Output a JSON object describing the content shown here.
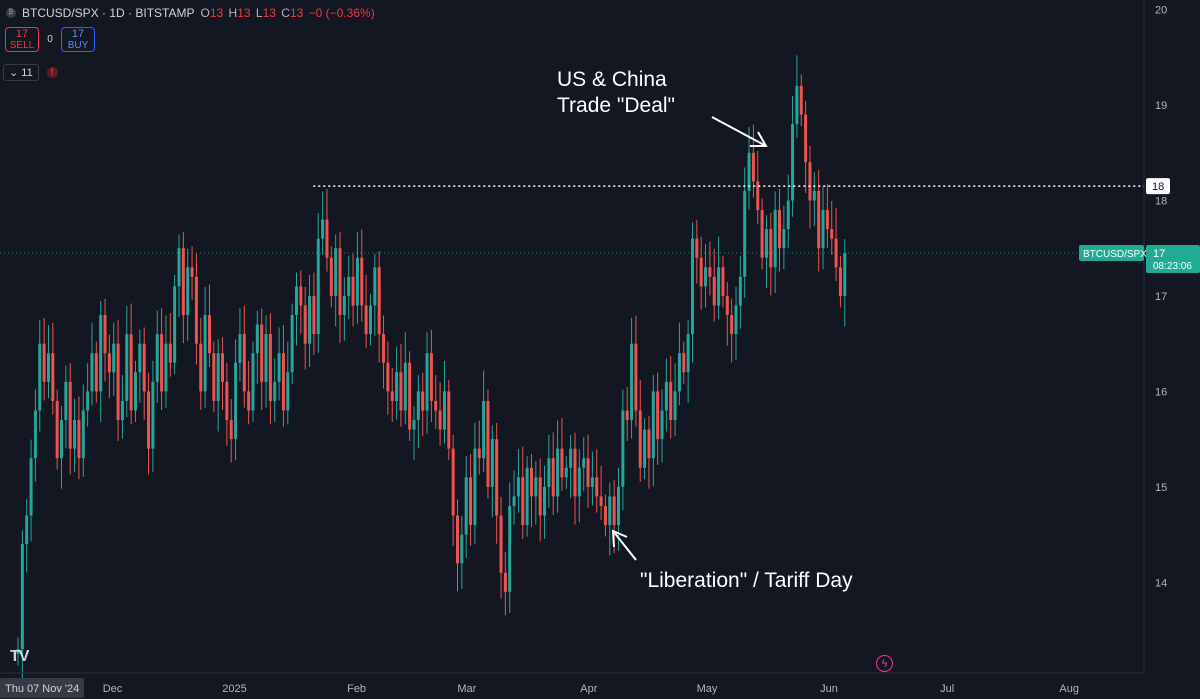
{
  "header": {
    "title": "BTCUSD/SPX · 1D · BITSTAMP",
    "open_label": "O",
    "open": "13",
    "high_label": "H",
    "high": "13",
    "low_label": "L",
    "low": "13",
    "close_label": "C",
    "close": "13",
    "change": "−0 (−0.36%)"
  },
  "trade": {
    "sell_price": "17",
    "sell_label": "SELL",
    "spread": "0",
    "buy_price": "17",
    "buy_label": "BUY"
  },
  "indicators": {
    "count": "11"
  },
  "colors": {
    "background": "#131722",
    "up": "#26a69a",
    "down": "#ef5350",
    "text": "#d1d4dc",
    "price_tag": "#22ab94"
  },
  "icons": {
    "symbol": "circle-icon",
    "collapse": "chevron-down-icon",
    "warning": "alert-icon",
    "logo": "tradingview-logo-icon",
    "flash": "lightning-icon"
  },
  "chart_data": {
    "type": "candlestick",
    "symbol": "BTCUSD/SPX",
    "x_start_date": "2024-11-07",
    "x_end_date": "2025-08-20",
    "ylim": [
      13.05,
      20.1
    ],
    "y_ticks": [
      "14",
      "15",
      "16",
      "17",
      "18",
      "19",
      "20"
    ],
    "x_ticks": [
      {
        "label": "Thu 07 Nov '24",
        "date": "2024-11-07",
        "highlight": true
      },
      {
        "label": "Dec",
        "date": "2024-12-01"
      },
      {
        "label": "2025",
        "date": "2025-01-01"
      },
      {
        "label": "Feb",
        "date": "2025-02-01"
      },
      {
        "label": "Mar",
        "date": "2025-03-01"
      },
      {
        "label": "Apr",
        "date": "2025-04-01"
      },
      {
        "label": "May",
        "date": "2025-05-01"
      },
      {
        "label": "Jun",
        "date": "2025-06-01"
      },
      {
        "label": "Jul",
        "date": "2025-07-01"
      },
      {
        "label": "Aug",
        "date": "2025-08-01"
      }
    ],
    "hline": {
      "value": 18.15,
      "label": "18",
      "start_date": "2025-01-21"
    },
    "last_price": {
      "value": 17.45,
      "symbol_label": "BTCUSD/SPX",
      "price_label": "17",
      "countdown": "08:23:06"
    },
    "close_series": [
      13.3,
      14.4,
      14.7,
      15.3,
      15.8,
      16.5,
      16.1,
      16.4,
      15.9,
      15.3,
      15.7,
      16.1,
      15.4,
      15.7,
      15.3,
      15.8,
      16.0,
      16.4,
      16.0,
      16.8,
      16.4,
      16.2,
      16.5,
      15.7,
      15.9,
      16.6,
      15.8,
      16.2,
      16.5,
      16.0,
      15.4,
      16.1,
      16.6,
      16.0,
      16.5,
      16.3,
      17.1,
      17.5,
      16.8,
      17.3,
      17.2,
      16.5,
      16.0,
      16.8,
      16.4,
      15.9,
      16.4,
      16.1,
      15.7,
      15.5,
      16.3,
      16.6,
      16.0,
      15.8,
      16.4,
      16.7,
      16.1,
      16.6,
      15.9,
      16.1,
      16.4,
      15.8,
      16.2,
      16.8,
      17.1,
      16.9,
      16.5,
      17.0,
      16.6,
      17.6,
      17.8,
      17.4,
      17.0,
      17.5,
      16.8,
      17.0,
      17.2,
      16.9,
      17.4,
      16.9,
      16.6,
      16.9,
      17.3,
      16.6,
      16.3,
      16.0,
      15.9,
      16.2,
      15.8,
      16.3,
      15.6,
      15.7,
      16.0,
      15.8,
      16.4,
      15.9,
      15.8,
      15.6,
      16.0,
      15.4,
      14.7,
      14.2,
      14.5,
      15.1,
      14.6,
      15.4,
      15.3,
      15.9,
      15.0,
      15.5,
      14.7,
      14.1,
      13.9,
      14.8,
      14.9,
      15.1,
      14.6,
      15.2,
      14.9,
      15.1,
      14.7,
      15.0,
      15.3,
      14.9,
      15.4,
      15.1,
      15.2,
      15.4,
      14.9,
      15.2,
      15.3,
      15.0,
      15.1,
      14.9,
      14.8,
      14.6,
      14.9,
      14.6,
      15.0,
      15.8,
      15.7,
      16.5,
      15.8,
      15.2,
      15.6,
      15.3,
      16.0,
      15.5,
      15.8,
      16.1,
      15.7,
      16.0,
      16.4,
      16.2,
      16.6,
      17.6,
      17.4,
      17.1,
      17.3,
      17.2,
      16.9,
      17.3,
      17.0,
      16.8,
      16.6,
      16.9,
      17.2,
      18.1,
      18.5,
      18.2,
      17.9,
      17.4,
      17.7,
      17.3,
      17.9,
      17.5,
      17.7,
      18.0,
      18.8,
      19.2,
      18.9,
      18.4,
      18.0,
      18.1,
      17.5,
      17.9,
      17.7,
      17.6,
      17.3,
      17.0,
      17.45
    ]
  },
  "annotations": {
    "trade_deal": {
      "line1": "US & China",
      "line2": "Trade \"Deal\""
    },
    "tariff_day": {
      "text": "\"Liberation\" / Tariff Day"
    }
  }
}
